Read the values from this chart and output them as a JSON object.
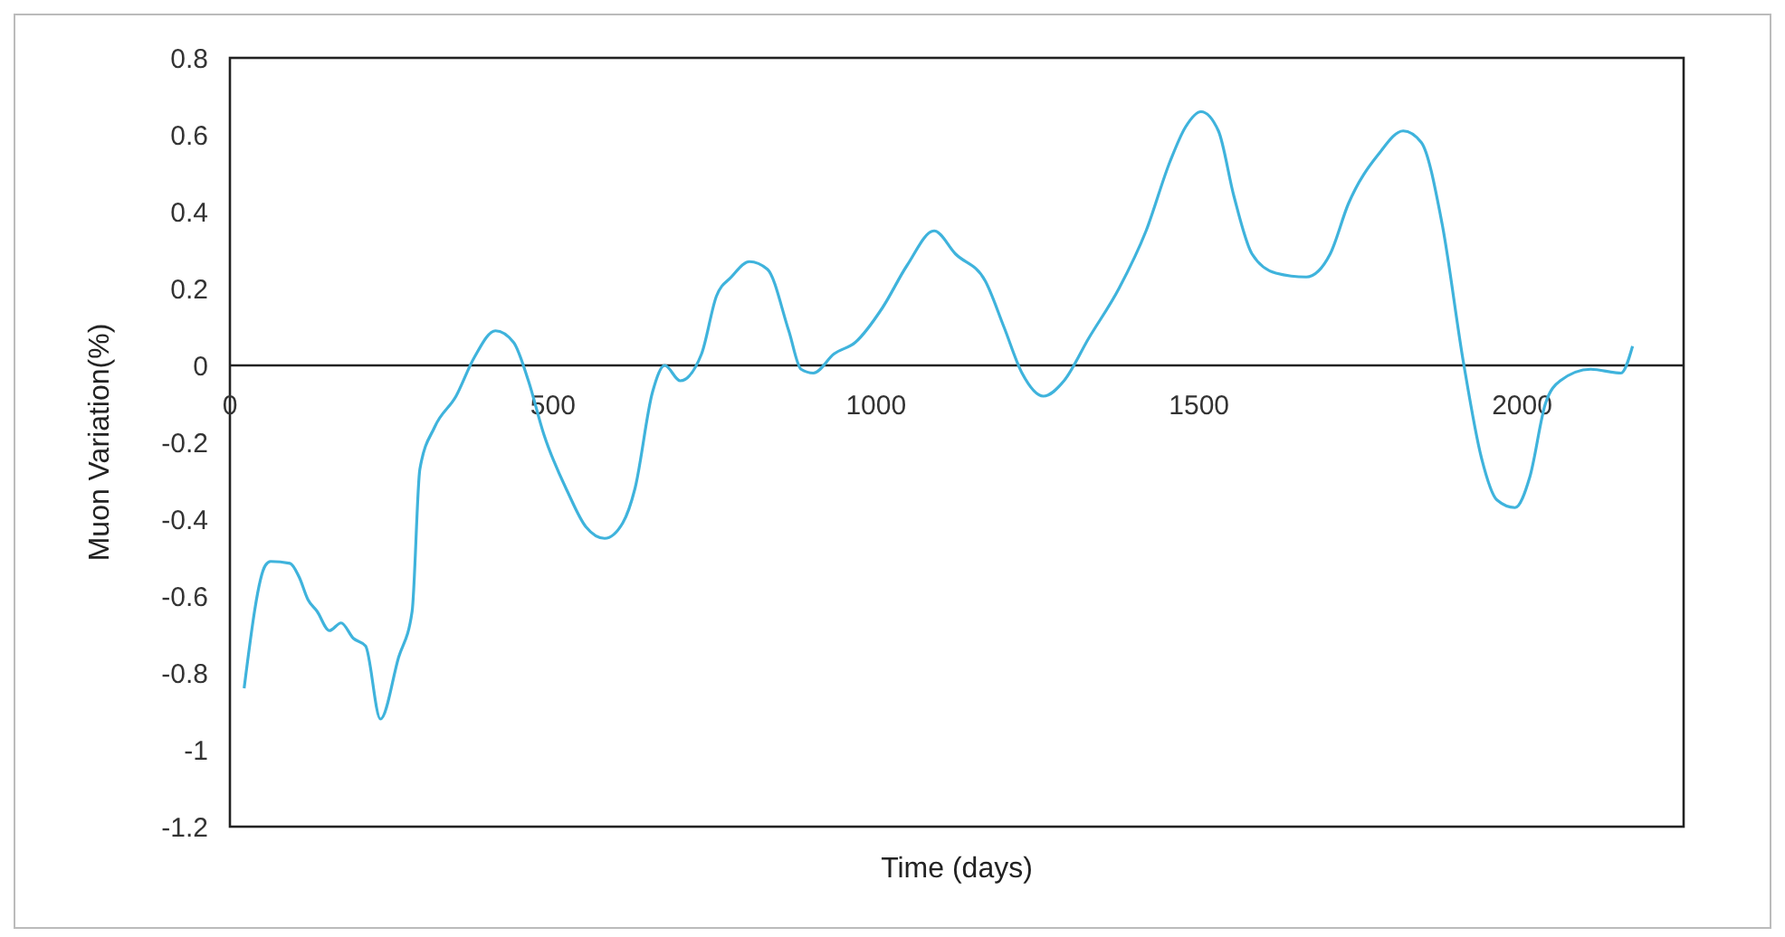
{
  "chart_data": {
    "type": "line",
    "xlabel": "Time (days)",
    "ylabel": "Muon Variation(%)",
    "xlim": [
      0,
      2250
    ],
    "xticks": [
      0,
      500,
      1000,
      1500,
      2000
    ],
    "ylim": [
      -1.2,
      0.8
    ],
    "yticks": [
      {
        "value": 0.8,
        "label": "0.8"
      },
      {
        "value": 0.6,
        "label": "0.6"
      },
      {
        "value": 0.4,
        "label": "0.4"
      },
      {
        "value": 0.2,
        "label": "0.2"
      },
      0,
      {
        "value": -0.2,
        "label": "-0.2"
      },
      {
        "value": -0.4,
        "label": "-0.4"
      },
      {
        "value": -0.6,
        "label": "-0.6"
      },
      {
        "value": -0.8,
        "label": "-0.8"
      },
      -1,
      {
        "value": -1.2,
        "label": "-1.2"
      }
    ],
    "grid": false,
    "marker": "none",
    "line_style": "solid",
    "series": [
      {
        "color": "#3fb3dc",
        "x": [
          22,
          55,
          63,
          93,
          107,
          121,
          135,
          154,
          172,
          191,
          210,
          233,
          261,
          282,
          294,
          317,
          350,
          378,
          411,
          439,
          462,
          486,
          523,
          551,
          580,
          608,
          627,
          654,
          673,
          697,
          730,
          753,
          776,
          804,
          832,
          865,
          884,
          903,
          935,
          968,
          1010,
          1048,
          1090,
          1123,
          1169,
          1198,
          1226,
          1259,
          1291,
          1329,
          1376,
          1418,
          1455,
          1479,
          1503,
          1530,
          1554,
          1582,
          1619,
          1666,
          1703,
          1731,
          1778,
          1816,
          1844,
          1876,
          1909,
          1937,
          1961,
          1989,
          2012,
          2036,
          2059,
          2106,
          2153,
          2171
        ],
        "values": [
          -0.84,
          -0.52,
          -0.51,
          -0.515,
          -0.55,
          -0.61,
          -0.64,
          -0.69,
          -0.67,
          -0.71,
          -0.73,
          -0.92,
          -0.76,
          -0.64,
          -0.27,
          -0.16,
          -0.08,
          0.02,
          0.09,
          0.06,
          -0.04,
          -0.18,
          -0.33,
          -0.42,
          -0.45,
          -0.41,
          -0.32,
          -0.07,
          0,
          -0.04,
          0.03,
          0.18,
          0.23,
          0.27,
          0.25,
          0.09,
          -0.01,
          -0.02,
          0.03,
          0.06,
          0.15,
          0.26,
          0.35,
          0.29,
          0.22,
          0.1,
          -0.02,
          -0.08,
          -0.04,
          0.07,
          0.2,
          0.35,
          0.53,
          0.62,
          0.66,
          0.61,
          0.44,
          0.29,
          0.24,
          0.23,
          0.29,
          0.42,
          0.55,
          0.61,
          0.58,
          0.37,
          0.01,
          -0.24,
          -0.35,
          -0.37,
          -0.29,
          -0.1,
          -0.04,
          -0.01,
          -0.02,
          0.05
        ]
      }
    ]
  }
}
